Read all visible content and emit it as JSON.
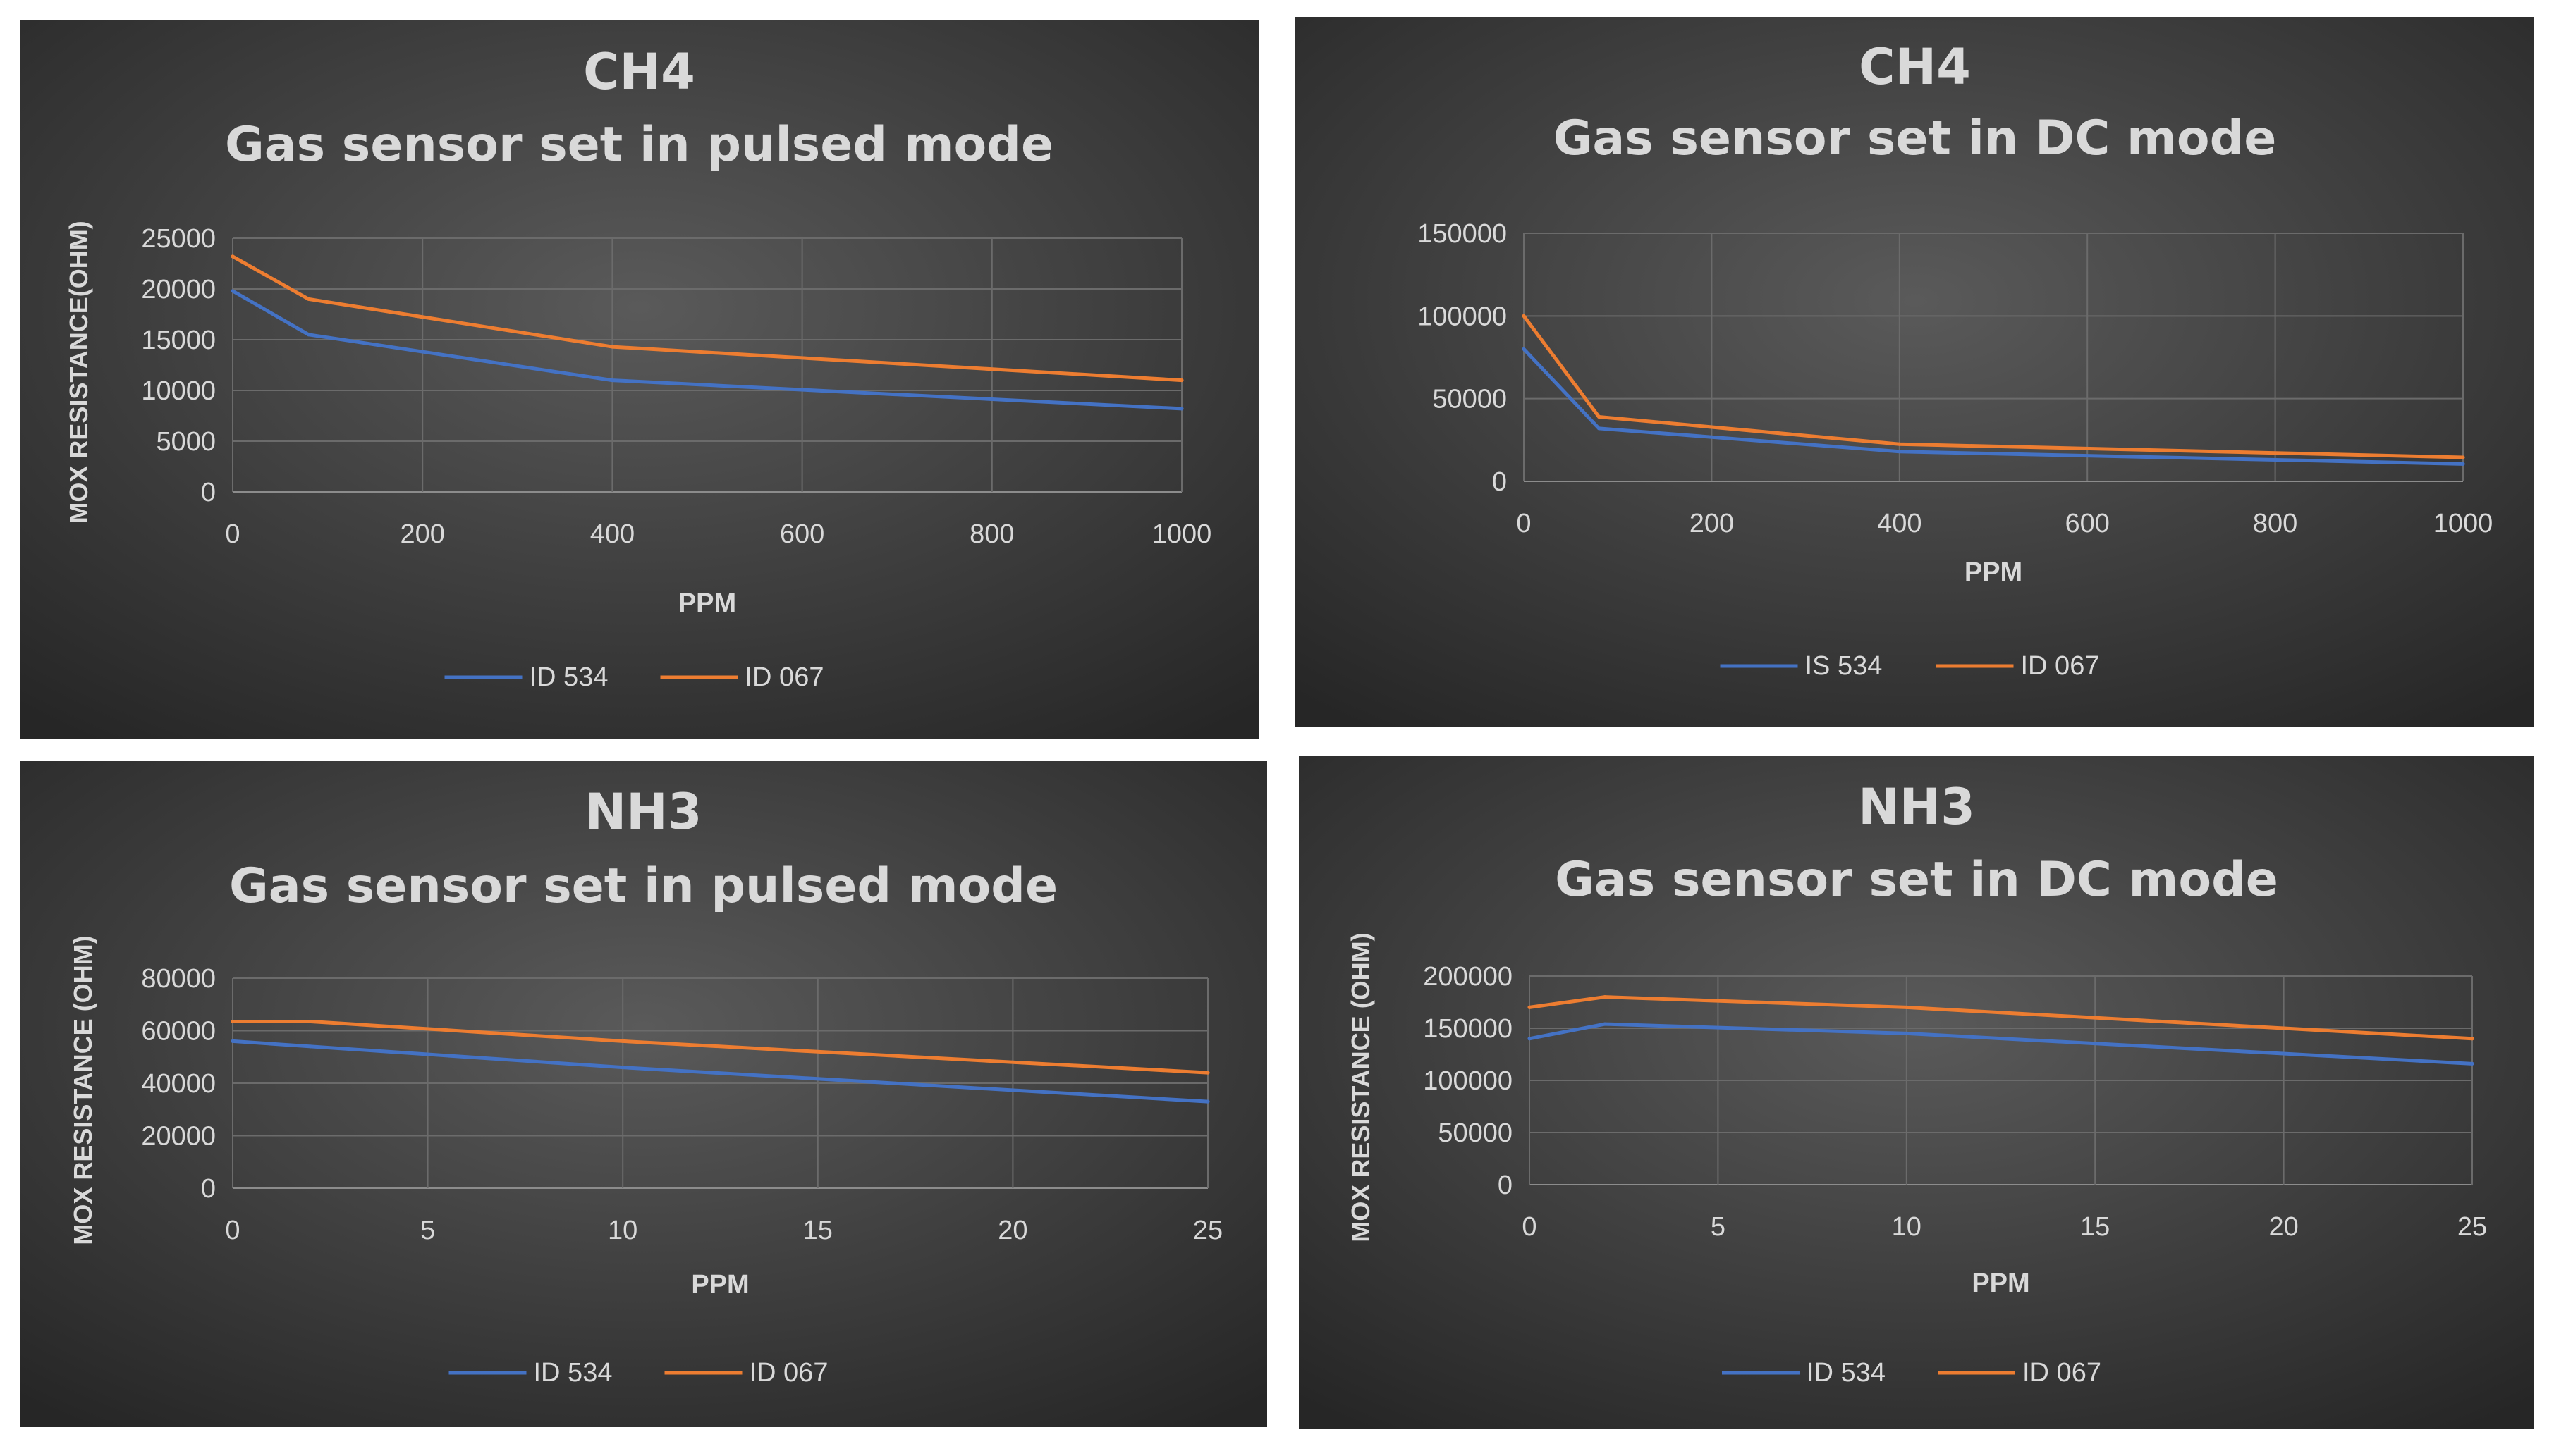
{
  "colors": {
    "series1": "#4472c4",
    "series2": "#ed7d31",
    "text": "#d9d9d9",
    "grid": "#6b6b6b",
    "axis": "#8c8c8c"
  },
  "chart_data": [
    {
      "type": "line",
      "title": "CH4",
      "subtitle": "Gas sensor set in pulsed mode",
      "xlabel": "PPM",
      "ylabel": "MOX RESISTANCE(OHM)",
      "xlim": [
        0,
        1000
      ],
      "ylim": [
        0,
        25000
      ],
      "x_ticks": [
        0,
        200,
        400,
        600,
        800,
        1000
      ],
      "y_ticks": [
        0,
        5000,
        10000,
        15000,
        20000,
        25000
      ],
      "legend": "bottom",
      "series": [
        {
          "name": "ID 534",
          "x": [
            0,
            80,
            400,
            1000
          ],
          "values": [
            19800,
            15500,
            11000,
            8200
          ]
        },
        {
          "name": "ID 067",
          "x": [
            0,
            80,
            400,
            1000
          ],
          "values": [
            23200,
            19000,
            14300,
            11000
          ]
        }
      ]
    },
    {
      "type": "line",
      "title": "CH4",
      "subtitle": "Gas sensor set in DC mode",
      "xlabel": "PPM",
      "ylabel": "",
      "xlim": [
        0,
        1000
      ],
      "ylim": [
        0,
        150000
      ],
      "x_ticks": [
        0,
        200,
        400,
        600,
        800,
        1000
      ],
      "y_ticks": [
        0,
        50000,
        100000,
        150000
      ],
      "legend": "bottom",
      "series": [
        {
          "name": "IS 534",
          "x": [
            0,
            80,
            400,
            1000
          ],
          "values": [
            80000,
            32000,
            18000,
            10500
          ]
        },
        {
          "name": "ID 067",
          "x": [
            0,
            80,
            400,
            1000
          ],
          "values": [
            100000,
            39000,
            22500,
            14500
          ]
        }
      ]
    },
    {
      "type": "line",
      "title": "NH3",
      "subtitle": "Gas sensor set in  pulsed mode",
      "xlabel": "PPM",
      "ylabel": "MOX RESISTANCE (OHM)",
      "xlim": [
        0,
        25
      ],
      "ylim": [
        0,
        80000
      ],
      "x_ticks": [
        0,
        5,
        10,
        15,
        20,
        25
      ],
      "y_ticks": [
        0,
        20000,
        40000,
        60000,
        80000
      ],
      "legend": "bottom",
      "series": [
        {
          "name": "ID 534",
          "x": [
            0,
            2,
            10,
            25
          ],
          "values": [
            56000,
            54000,
            46000,
            33000
          ]
        },
        {
          "name": "ID 067",
          "x": [
            0,
            2,
            10,
            25
          ],
          "values": [
            63500,
            63500,
            56000,
            44000
          ]
        }
      ]
    },
    {
      "type": "line",
      "title": "NH3",
      "subtitle": "Gas sensor set in DC mode",
      "xlabel": "PPM",
      "ylabel": "MOX RESISTANCE (OHM)",
      "xlim": [
        0,
        25
      ],
      "ylim": [
        0,
        200000
      ],
      "x_ticks": [
        0,
        5,
        10,
        15,
        20,
        25
      ],
      "y_ticks": [
        0,
        50000,
        100000,
        150000,
        200000
      ],
      "legend": "bottom",
      "series": [
        {
          "name": "ID 534",
          "x": [
            0,
            2,
            10,
            25
          ],
          "values": [
            140000,
            154000,
            145000,
            116000
          ]
        },
        {
          "name": "ID 067",
          "x": [
            0,
            2,
            10,
            25
          ],
          "values": [
            170000,
            180000,
            170000,
            140000
          ]
        }
      ]
    }
  ]
}
